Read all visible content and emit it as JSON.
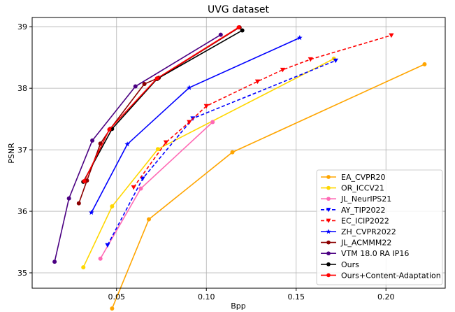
{
  "chart_data": {
    "type": "line",
    "title": "UVG dataset",
    "xlabel": "Bpp",
    "ylabel": "PSNR",
    "xlim": [
      0.003,
      0.233
    ],
    "ylim": [
      34.75,
      39.15
    ],
    "xticks": [
      "0.05",
      "0.10",
      "0.15",
      "0.20"
    ],
    "xtick_values": [
      0.05,
      0.1,
      0.15,
      0.2
    ],
    "yticks": [
      "35",
      "36",
      "37",
      "38",
      "39"
    ],
    "ytick_values": [
      35,
      36,
      37,
      38,
      39
    ],
    "grid": true,
    "legend_position": "lower-right",
    "series": [
      {
        "name": "EA_CVPR20",
        "color": "#ffa500",
        "marker": "circle",
        "dashed": false,
        "x": [
          0.0475,
          0.068,
          0.1145,
          0.2215
        ],
        "y": [
          34.42,
          35.87,
          36.96,
          38.39
        ]
      },
      {
        "name": "OR_ICCV21",
        "color": "#ffd700",
        "marker": "circle",
        "dashed": false,
        "x": [
          0.0315,
          0.0475,
          0.073,
          0.171
        ],
        "y": [
          35.09,
          36.08,
          37.01,
          38.48
        ]
      },
      {
        "name": "JL_NeurIPS21",
        "color": "#ff69b4",
        "marker": "circle",
        "dashed": false,
        "x": [
          0.041,
          0.0635,
          0.1035
        ],
        "y": [
          35.23,
          36.37,
          37.45
        ]
      },
      {
        "name": "AY_TIP2022",
        "color": "#0000ff",
        "marker": "triangle-down",
        "dashed": true,
        "x": [
          0.045,
          0.0645,
          0.0925,
          0.172
        ],
        "y": [
          35.45,
          36.53,
          37.51,
          38.45
        ]
      },
      {
        "name": "EC_ICIP2022",
        "color": "#ff0000",
        "marker": "triangle-down",
        "dashed": true,
        "x": [
          0.0595,
          0.0775,
          0.0905,
          0.1,
          0.1285,
          0.1425,
          0.158,
          0.203
        ],
        "y": [
          36.39,
          37.12,
          37.45,
          37.71,
          38.11,
          38.3,
          38.47,
          38.86
        ]
      },
      {
        "name": "ZH_CVPR2022",
        "color": "#0000ff",
        "marker": "star",
        "dashed": false,
        "x": [
          0.036,
          0.056,
          0.0905,
          0.152
        ],
        "y": [
          35.98,
          37.09,
          38.01,
          38.82
        ]
      },
      {
        "name": "JL_ACMMM22",
        "color": "#8b0000",
        "marker": "circle",
        "dashed": false,
        "x": [
          0.029,
          0.0335,
          0.041,
          0.0465,
          0.0655,
          0.0735,
          0.1185
        ],
        "y": [
          36.13,
          36.5,
          37.1,
          37.34,
          38.07,
          38.17,
          38.99
        ]
      },
      {
        "name": "VTM 18.0 RA IP16",
        "color": "#4b0082",
        "marker": "circle",
        "dashed": false,
        "x": [
          0.0155,
          0.0235,
          0.0365,
          0.0605,
          0.108
        ],
        "y": [
          35.18,
          36.21,
          37.15,
          38.03,
          38.87
        ]
      },
      {
        "name": "Ours",
        "color": "#000000",
        "marker": "circle",
        "dashed": false,
        "x": [
          0.0315,
          0.0475,
          0.0725,
          0.12
        ],
        "y": [
          36.48,
          37.34,
          38.15,
          38.94
        ]
      },
      {
        "name": "Ours+Content-Adaptation",
        "color": "#ff0000",
        "marker": "circle",
        "dashed": false,
        "x": [
          0.032,
          0.046,
          0.0725,
          0.118
        ],
        "y": [
          36.49,
          37.33,
          38.16,
          38.99
        ]
      }
    ]
  }
}
